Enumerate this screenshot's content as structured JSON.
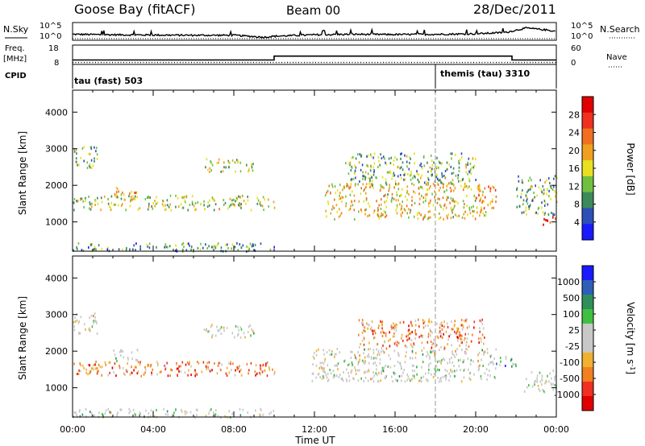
{
  "header": {
    "station": "Goose Bay (fitACF)",
    "beam": "Beam 00",
    "date": "28/Dec/2011"
  },
  "left_labels": {
    "nsky": "N.Sky",
    "freq": "Freq.",
    "freq_unit": "[MHz]",
    "cpid": "CPID"
  },
  "right_labels": {
    "nsearch": "N.Search",
    "nave": "Nave"
  },
  "cpid_segments": [
    {
      "label": "tau (fast) 503"
    },
    {
      "label": "themis (tau) 3310"
    }
  ],
  "colors": {
    "power_scale": [
      "#1a1aff",
      "#2d4fb8",
      "#3c8a5a",
      "#70c040",
      "#e8e020",
      "#f0a020",
      "#f07020",
      "#f03020",
      "#e00000"
    ],
    "velocity_scale": [
      "#e00000",
      "#f03020",
      "#f08020",
      "#f0b030",
      "#c8c8c8",
      "#c8c8c8",
      "#40c040",
      "#2e8f5a",
      "#2d5fb8",
      "#1a1aff"
    ],
    "cursor_line": "#9a9a9a"
  },
  "chart_data": [
    {
      "type": "line",
      "panel": "noise",
      "title": "",
      "ylabel": "N.Sky",
      "yticks": [
        "10^5",
        "10^0"
      ],
      "y2label": "N.Search",
      "y2ticks": [
        "10^5",
        "10^0"
      ],
      "xlim_hours": [
        0,
        24
      ],
      "series": [
        {
          "name": "N.Sky",
          "x_hours": [
            0,
            2,
            4,
            6,
            8,
            9.5,
            10,
            12,
            14,
            16,
            18,
            20,
            21.5,
            22.5,
            23.5,
            24
          ],
          "values_log10": [
            0.9,
            0.8,
            0.75,
            0.7,
            0.7,
            0.3,
            0.5,
            0.8,
            0.9,
            0.85,
            0.9,
            1.0,
            1.3,
            2.2,
            1.8,
            1.5
          ]
        },
        {
          "name": "N.Search",
          "x_hours": [
            0,
            24
          ],
          "values_log10": [
            0,
            0
          ]
        }
      ]
    },
    {
      "type": "line",
      "panel": "frequency",
      "ylabel": "Freq. [MHz]",
      "yticks": [
        "18",
        "8"
      ],
      "ylim": [
        8,
        18
      ],
      "y2label": "Nave",
      "y2ticks": [
        "60",
        "0"
      ],
      "y2lim": [
        0,
        60
      ],
      "series": [
        {
          "name": "Freq.",
          "x_hours": [
            0,
            10,
            10,
            21.8,
            21.8,
            24
          ],
          "values": [
            10.3,
            10.3,
            12.3,
            12.3,
            10.3,
            10.3
          ]
        },
        {
          "name": "Nave",
          "x_hours": [
            0,
            24
          ],
          "values": [
            6,
            6
          ]
        }
      ]
    },
    {
      "type": "table",
      "panel": "cpid",
      "ylabel": "CPID",
      "segments": [
        {
          "label": "tau (fast) 503",
          "start_hour": 0,
          "end_hour": 18
        },
        {
          "label": "themis (tau) 3310",
          "start_hour": 18,
          "end_hour": 24
        }
      ]
    },
    {
      "type": "heatmap",
      "panel": "power",
      "ylabel": "Slant Range [km]",
      "ylim": [
        200,
        4600
      ],
      "yticks": [
        1000,
        2000,
        3000,
        4000
      ],
      "xlim_hours": [
        0,
        24
      ],
      "colorbar": {
        "label": "Power [dB]",
        "ticks": [
          4,
          8,
          12,
          16,
          20,
          24,
          28
        ],
        "range": [
          0,
          32
        ]
      },
      "regions": [
        {
          "x0": 0.0,
          "x1": 10.0,
          "y0": 1350,
          "y1": 1750,
          "level": 0.45
        },
        {
          "x0": 2.0,
          "x1": 3.2,
          "y0": 1750,
          "y1": 2000,
          "level": 0.6
        },
        {
          "x0": 0.0,
          "x1": 1.2,
          "y0": 2500,
          "y1": 3100,
          "level": 0.4
        },
        {
          "x0": 6.5,
          "x1": 9.0,
          "y0": 2400,
          "y1": 2750,
          "level": 0.45
        },
        {
          "x0": 0.0,
          "x1": 10.0,
          "y0": 220,
          "y1": 450,
          "level": 0.3
        },
        {
          "x0": 12.5,
          "x1": 20.5,
          "y0": 1100,
          "y1": 2100,
          "level": 0.55
        },
        {
          "x0": 13.5,
          "x1": 20.0,
          "y0": 2100,
          "y1": 2900,
          "level": 0.35
        },
        {
          "x0": 20.0,
          "x1": 21.0,
          "y0": 1400,
          "y1": 2000,
          "level": 0.65
        },
        {
          "x0": 22.0,
          "x1": 24.0,
          "y0": 1200,
          "y1": 2300,
          "level": 0.35
        },
        {
          "x0": 23.3,
          "x1": 24.0,
          "y0": 950,
          "y1": 1200,
          "level": 0.9
        }
      ]
    },
    {
      "type": "heatmap",
      "panel": "velocity",
      "ylabel": "Slant Range [km]",
      "xlabel": "Time UT",
      "ylim": [
        200,
        4600
      ],
      "yticks": [
        1000,
        2000,
        3000,
        4000
      ],
      "xlim_hours": [
        0,
        24
      ],
      "xticks": [
        "00:00",
        "04:00",
        "08:00",
        "12:00",
        "16:00",
        "20:00",
        "00:00"
      ],
      "colorbar": {
        "label": "Velocity [m s^-1]",
        "ticks": [
          "1000",
          "500",
          "100",
          "25",
          "-25",
          "-100",
          "-500",
          "-1000"
        ]
      },
      "regions": [
        {
          "x0": 0.0,
          "x1": 10.0,
          "y0": 1350,
          "y1": 1750,
          "level": 0.25
        },
        {
          "x0": 2.0,
          "x1": 3.2,
          "y0": 1750,
          "y1": 2100,
          "level": 0.6
        },
        {
          "x0": 0.0,
          "x1": 1.2,
          "y0": 2500,
          "y1": 3100,
          "level": 0.5
        },
        {
          "x0": 6.5,
          "x1": 9.0,
          "y0": 2400,
          "y1": 2750,
          "level": 0.5
        },
        {
          "x0": 11.8,
          "x1": 21.0,
          "y0": 1200,
          "y1": 2100,
          "level": 0.5
        },
        {
          "x0": 14.0,
          "x1": 20.5,
          "y0": 2100,
          "y1": 2900,
          "level": 0.3
        },
        {
          "x0": 21.0,
          "x1": 22.0,
          "y0": 1600,
          "y1": 1900,
          "level": 0.75
        },
        {
          "x0": 22.3,
          "x1": 24.0,
          "y0": 900,
          "y1": 1500,
          "level": 0.5
        },
        {
          "x0": 0.0,
          "x1": 10.0,
          "y0": 220,
          "y1": 450,
          "level": 0.55
        }
      ]
    }
  ]
}
